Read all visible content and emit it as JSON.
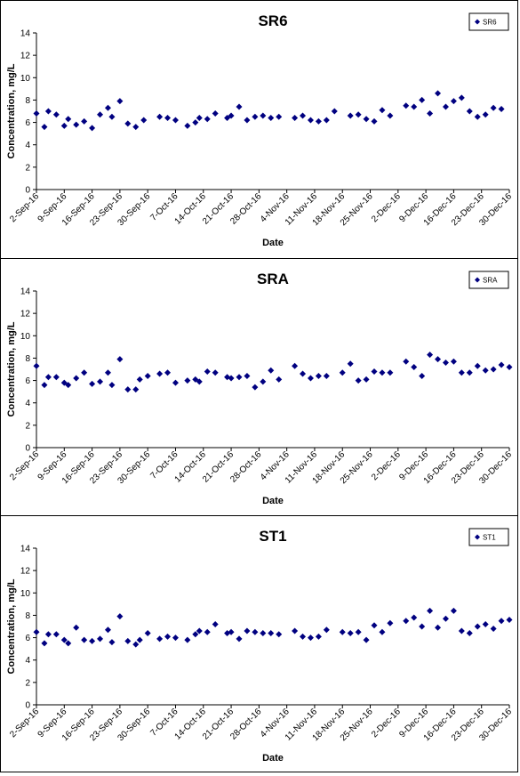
{
  "chart_data": [
    {
      "type": "scatter",
      "title": "SR6",
      "xlabel": "Date",
      "ylabel": "Concentration, mg/L",
      "ylim": [
        0,
        14
      ],
      "yticks": [
        "0",
        "2",
        "4",
        "6",
        "8",
        "10",
        "12",
        "14"
      ],
      "xlim": [
        "2-Sep-16",
        "30-Dec-16"
      ],
      "xticks": [
        "2-Sep-16",
        "9-Sep-16",
        "16-Sep-16",
        "23-Sep-16",
        "30-Sep-16",
        "7-Oct-16",
        "14-Oct-16",
        "21-Oct-16",
        "28-Oct-16",
        "4-Nov-16",
        "11-Nov-16",
        "18-Nov-16",
        "25-Nov-16",
        "2-Dec-16",
        "9-Dec-16",
        "16-Dec-16",
        "23-Dec-16",
        "30-Dec-16"
      ],
      "grid": false,
      "legend_position": "top-right",
      "marker_color": "#000080",
      "series": [
        {
          "name": "SR6",
          "x": [
            "2-Sep-16",
            "4-Sep-16",
            "5-Sep-16",
            "7-Sep-16",
            "9-Sep-16",
            "10-Sep-16",
            "12-Sep-16",
            "14-Sep-16",
            "16-Sep-16",
            "18-Sep-16",
            "20-Sep-16",
            "21-Sep-16",
            "23-Sep-16",
            "25-Sep-16",
            "27-Sep-16",
            "29-Sep-16",
            "3-Oct-16",
            "5-Oct-16",
            "7-Oct-16",
            "10-Oct-16",
            "12-Oct-16",
            "13-Oct-16",
            "15-Oct-16",
            "17-Oct-16",
            "20-Oct-16",
            "21-Oct-16",
            "23-Oct-16",
            "25-Oct-16",
            "27-Oct-16",
            "29-Oct-16",
            "31-Oct-16",
            "2-Nov-16",
            "6-Nov-16",
            "8-Nov-16",
            "10-Nov-16",
            "12-Nov-16",
            "14-Nov-16",
            "16-Nov-16",
            "20-Nov-16",
            "22-Nov-16",
            "24-Nov-16",
            "26-Nov-16",
            "28-Nov-16",
            "30-Nov-16",
            "4-Dec-16",
            "6-Dec-16",
            "8-Dec-16",
            "10-Dec-16",
            "12-Dec-16",
            "14-Dec-16",
            "16-Dec-16",
            "18-Dec-16",
            "20-Dec-16",
            "22-Dec-16",
            "24-Dec-16",
            "26-Dec-16",
            "28-Dec-16"
          ],
          "y": [
            6.8,
            5.6,
            7.0,
            6.7,
            5.7,
            6.3,
            5.8,
            6.1,
            5.5,
            6.7,
            7.3,
            6.5,
            7.9,
            5.9,
            5.6,
            6.2,
            6.5,
            6.4,
            6.2,
            5.7,
            6.0,
            6.4,
            6.3,
            6.8,
            6.4,
            6.6,
            7.4,
            6.2,
            6.5,
            6.6,
            6.4,
            6.5,
            6.4,
            6.6,
            6.2,
            6.1,
            6.2,
            7.0,
            6.6,
            6.7,
            6.3,
            6.1,
            7.1,
            6.6,
            7.5,
            7.4,
            8.0,
            6.8,
            8.6,
            7.4,
            7.9,
            8.2,
            7.0,
            6.5,
            6.7,
            7.3,
            7.2
          ]
        }
      ]
    },
    {
      "type": "scatter",
      "title": "SRA",
      "xlabel": "Date",
      "ylabel": "Concentration, mg/L",
      "ylim": [
        0,
        14
      ],
      "yticks": [
        "0",
        "2",
        "4",
        "6",
        "8",
        "10",
        "12",
        "14"
      ],
      "xlim": [
        "2-Sep-16",
        "30-Dec-16"
      ],
      "xticks": [
        "2-Sep-16",
        "9-Sep-16",
        "16-Sep-16",
        "23-Sep-16",
        "30-Sep-16",
        "7-Oct-16",
        "14-Oct-16",
        "21-Oct-16",
        "28-Oct-16",
        "4-Nov-16",
        "11-Nov-16",
        "18-Nov-16",
        "25-Nov-16",
        "2-Dec-16",
        "9-Dec-16",
        "16-Dec-16",
        "23-Dec-16",
        "30-Dec-16"
      ],
      "grid": false,
      "legend_position": "top-right",
      "marker_color": "#000080",
      "series": [
        {
          "name": "SRA",
          "x": [
            "2-Sep-16",
            "4-Sep-16",
            "5-Sep-16",
            "7-Sep-16",
            "9-Sep-16",
            "10-Sep-16",
            "12-Sep-16",
            "14-Sep-16",
            "16-Sep-16",
            "18-Sep-16",
            "20-Sep-16",
            "21-Sep-16",
            "23-Sep-16",
            "25-Sep-16",
            "27-Sep-16",
            "28-Sep-16",
            "30-Sep-16",
            "3-Oct-16",
            "5-Oct-16",
            "7-Oct-16",
            "10-Oct-16",
            "12-Oct-16",
            "13-Oct-16",
            "15-Oct-16",
            "17-Oct-16",
            "20-Oct-16",
            "21-Oct-16",
            "23-Oct-16",
            "25-Oct-16",
            "27-Oct-16",
            "29-Oct-16",
            "31-Oct-16",
            "2-Nov-16",
            "6-Nov-16",
            "8-Nov-16",
            "10-Nov-16",
            "12-Nov-16",
            "14-Nov-16",
            "18-Nov-16",
            "20-Nov-16",
            "22-Nov-16",
            "24-Nov-16",
            "26-Nov-16",
            "28-Nov-16",
            "30-Nov-16",
            "4-Dec-16",
            "6-Dec-16",
            "8-Dec-16",
            "10-Dec-16",
            "12-Dec-16",
            "14-Dec-16",
            "16-Dec-16",
            "18-Dec-16",
            "20-Dec-16",
            "22-Dec-16",
            "24-Dec-16",
            "26-Dec-16",
            "28-Dec-16",
            "30-Dec-16"
          ],
          "y": [
            7.3,
            5.6,
            6.3,
            6.3,
            5.8,
            5.6,
            6.2,
            6.7,
            5.7,
            5.9,
            6.7,
            5.6,
            7.9,
            5.2,
            5.2,
            6.1,
            6.4,
            6.6,
            6.7,
            5.8,
            6.0,
            6.1,
            5.9,
            6.8,
            6.7,
            6.3,
            6.2,
            6.3,
            6.4,
            5.4,
            5.9,
            6.9,
            6.1,
            7.3,
            6.6,
            6.2,
            6.4,
            6.4,
            6.7,
            7.5,
            6.0,
            6.1,
            6.8,
            6.7,
            6.7,
            7.7,
            7.2,
            6.4,
            8.3,
            7.9,
            7.6,
            7.7,
            6.7,
            6.7,
            7.3,
            6.9,
            7.0,
            7.4,
            7.2
          ]
        }
      ]
    },
    {
      "type": "scatter",
      "title": "ST1",
      "xlabel": "Date",
      "ylabel": "Concentration, mg/L",
      "ylim": [
        0,
        14
      ],
      "yticks": [
        "0",
        "2",
        "4",
        "6",
        "8",
        "10",
        "12",
        "14"
      ],
      "xlim": [
        "2-Sep-16",
        "30-Dec-16"
      ],
      "xticks": [
        "2-Sep-16",
        "9-Sep-16",
        "16-Sep-16",
        "23-Sep-16",
        "30-Sep-16",
        "7-Oct-16",
        "14-Oct-16",
        "21-Oct-16",
        "28-Oct-16",
        "4-Nov-16",
        "11-Nov-16",
        "18-Nov-16",
        "25-Nov-16",
        "2-Dec-16",
        "9-Dec-16",
        "16-Dec-16",
        "23-Dec-16",
        "30-Dec-16"
      ],
      "grid": false,
      "legend_position": "top-right",
      "marker_color": "#000080",
      "series": [
        {
          "name": "ST1",
          "x": [
            "2-Sep-16",
            "4-Sep-16",
            "5-Sep-16",
            "7-Sep-16",
            "9-Sep-16",
            "10-Sep-16",
            "12-Sep-16",
            "14-Sep-16",
            "16-Sep-16",
            "18-Sep-16",
            "20-Sep-16",
            "21-Sep-16",
            "23-Sep-16",
            "25-Sep-16",
            "27-Sep-16",
            "28-Sep-16",
            "30-Sep-16",
            "3-Oct-16",
            "5-Oct-16",
            "7-Oct-16",
            "10-Oct-16",
            "12-Oct-16",
            "13-Oct-16",
            "15-Oct-16",
            "17-Oct-16",
            "20-Oct-16",
            "21-Oct-16",
            "23-Oct-16",
            "25-Oct-16",
            "27-Oct-16",
            "29-Oct-16",
            "31-Oct-16",
            "2-Nov-16",
            "6-Nov-16",
            "8-Nov-16",
            "10-Nov-16",
            "12-Nov-16",
            "14-Nov-16",
            "18-Nov-16",
            "20-Nov-16",
            "22-Nov-16",
            "24-Nov-16",
            "26-Nov-16",
            "28-Nov-16",
            "30-Nov-16",
            "4-Dec-16",
            "6-Dec-16",
            "8-Dec-16",
            "10-Dec-16",
            "12-Dec-16",
            "14-Dec-16",
            "16-Dec-16",
            "18-Dec-16",
            "20-Dec-16",
            "22-Dec-16",
            "24-Dec-16",
            "26-Dec-16",
            "28-Dec-16",
            "30-Dec-16"
          ],
          "y": [
            6.5,
            5.5,
            6.3,
            6.3,
            5.8,
            5.5,
            6.9,
            5.8,
            5.7,
            5.9,
            6.7,
            5.6,
            7.9,
            5.7,
            5.4,
            5.8,
            6.4,
            5.9,
            6.1,
            6.0,
            5.8,
            6.3,
            6.6,
            6.5,
            7.2,
            6.4,
            6.5,
            5.9,
            6.6,
            6.5,
            6.4,
            6.4,
            6.3,
            6.6,
            6.1,
            6.0,
            6.1,
            6.7,
            6.5,
            6.4,
            6.5,
            5.8,
            7.1,
            6.5,
            7.3,
            7.5,
            7.8,
            7.0,
            8.4,
            6.9,
            7.7,
            8.4,
            6.6,
            6.4,
            7.0,
            7.2,
            6.8,
            7.5,
            7.6
          ]
        }
      ]
    }
  ]
}
